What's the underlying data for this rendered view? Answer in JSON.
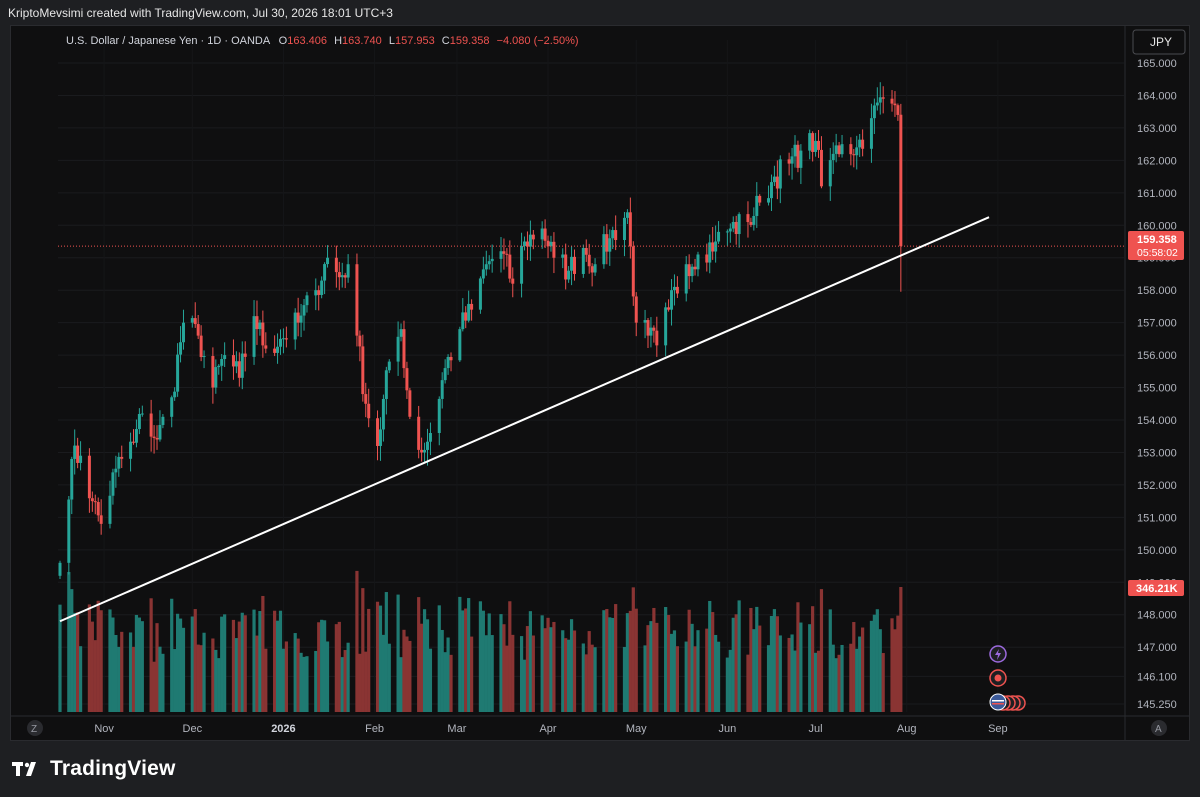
{
  "caption": "KriptoMevsimi created with TradingView.com, Jul 30, 2026 18:01 UTC+3",
  "brand": "TradingView",
  "legend": {
    "symbol": "U.S. Dollar / Japanese Yen · 1D · OANDA",
    "open_label": "O",
    "open": "163.406",
    "high_label": "H",
    "high": "163.740",
    "low_label": "L",
    "low": "157.953",
    "close_label": "C",
    "close": "159.358",
    "change": "−4.080 (−2.50%)"
  },
  "currency_button": "JPY",
  "price_badge": {
    "price": "159.358",
    "countdown": "05:58:02"
  },
  "volume_badge": "346.21K",
  "axis_buttons": {
    "left": "Z",
    "right": "A"
  },
  "colors": {
    "up": "#26a69a",
    "down": "#ef5350",
    "vol_up": "#1f7a72",
    "vol_down": "#8a3433",
    "trendline": "#ffffff"
  },
  "chart_data": {
    "type": "candlestick",
    "symbol": "USDJPY",
    "ylim": [
      145.25,
      165.0
    ],
    "y_ticks": [
      "165.000",
      "164.000",
      "163.000",
      "162.000",
      "161.000",
      "160.000",
      "159.000",
      "158.000",
      "157.000",
      "156.000",
      "155.000",
      "154.000",
      "153.000",
      "152.000",
      "151.000",
      "150.000",
      "149.000",
      "148.000",
      "147.000",
      "146.100",
      "145.250"
    ],
    "x_ticks": [
      "Nov",
      "Dec",
      "2026",
      "Feb",
      "Mar",
      "Apr",
      "May",
      "Jun",
      "Jul",
      "Aug",
      "Sep"
    ],
    "anchors": [
      [
        "2025-10-17",
        149.6
      ],
      [
        "2025-10-21",
        152.8
      ],
      [
        "2025-10-24",
        152.9
      ],
      [
        "2025-10-28",
        151.5
      ],
      [
        "2025-10-31",
        150.8
      ],
      [
        "2025-11-05",
        152.5
      ],
      [
        "2025-11-11",
        153.3
      ],
      [
        "2025-11-14",
        154.2
      ],
      [
        "2025-11-19",
        153.4
      ],
      [
        "2025-11-24",
        154.7
      ],
      [
        "2025-11-28",
        157.0
      ],
      [
        "2025-12-03",
        156.6
      ],
      [
        "2025-12-08",
        155.0
      ],
      [
        "2025-12-12",
        156.0
      ],
      [
        "2025-12-17",
        155.3
      ],
      [
        "2025-12-22",
        157.2
      ],
      [
        "2025-12-26",
        156.2
      ],
      [
        "2025-12-31",
        156.5
      ],
      [
        "2026-01-06",
        157.0
      ],
      [
        "2026-01-12",
        158.0
      ],
      [
        "2026-01-16",
        159.0
      ],
      [
        "2026-01-20",
        158.4
      ],
      [
        "2026-01-23",
        158.8
      ],
      [
        "2026-01-26",
        156.6
      ],
      [
        "2026-01-29",
        154.5
      ],
      [
        "2026-02-02",
        153.2
      ],
      [
        "2026-02-06",
        155.8
      ],
      [
        "2026-02-10",
        156.8
      ],
      [
        "2026-02-13",
        154.1
      ],
      [
        "2026-02-17",
        153.0
      ],
      [
        "2026-02-20",
        153.6
      ],
      [
        "2026-02-25",
        155.6
      ],
      [
        "2026-03-02",
        156.8
      ],
      [
        "2026-03-06",
        157.4
      ],
      [
        "2026-03-11",
        158.8
      ],
      [
        "2026-03-16",
        159.2
      ],
      [
        "2026-03-20",
        158.2
      ],
      [
        "2026-03-24",
        159.5
      ],
      [
        "2026-03-30",
        159.9
      ],
      [
        "2026-04-03",
        159.0
      ],
      [
        "2026-04-08",
        158.6
      ],
      [
        "2026-04-13",
        159.3
      ],
      [
        "2026-04-17",
        158.8
      ],
      [
        "2026-04-22",
        159.6
      ],
      [
        "2026-04-28",
        160.4
      ],
      [
        "2026-05-01",
        157.0
      ],
      [
        "2026-05-05",
        156.6
      ],
      [
        "2026-05-08",
        156.3
      ],
      [
        "2026-05-12",
        157.4
      ],
      [
        "2026-05-18",
        158.8
      ],
      [
        "2026-05-22",
        159.1
      ],
      [
        "2026-05-28",
        159.5
      ],
      [
        "2026-06-02",
        159.9
      ],
      [
        "2026-06-08",
        160.1
      ],
      [
        "2026-06-12",
        160.7
      ],
      [
        "2026-06-17",
        161.5
      ],
      [
        "2026-06-22",
        161.9
      ],
      [
        "2026-06-26",
        162.3
      ],
      [
        "2026-07-01",
        162.6
      ],
      [
        "2026-07-03",
        161.2
      ],
      [
        "2026-07-07",
        162.2
      ],
      [
        "2026-07-10",
        162.5
      ],
      [
        "2026-07-15",
        162.4
      ],
      [
        "2026-07-20",
        163.3
      ],
      [
        "2026-07-24",
        163.9
      ],
      [
        "2026-07-28",
        163.7
      ],
      [
        "2026-07-29",
        163.4
      ],
      [
        "2026-07-30",
        159.358
      ]
    ],
    "trendline": {
      "from": [
        "2025-10-17",
        147.8
      ],
      "to": [
        "2026-08-29",
        160.25
      ]
    },
    "current_price": 159.358
  }
}
